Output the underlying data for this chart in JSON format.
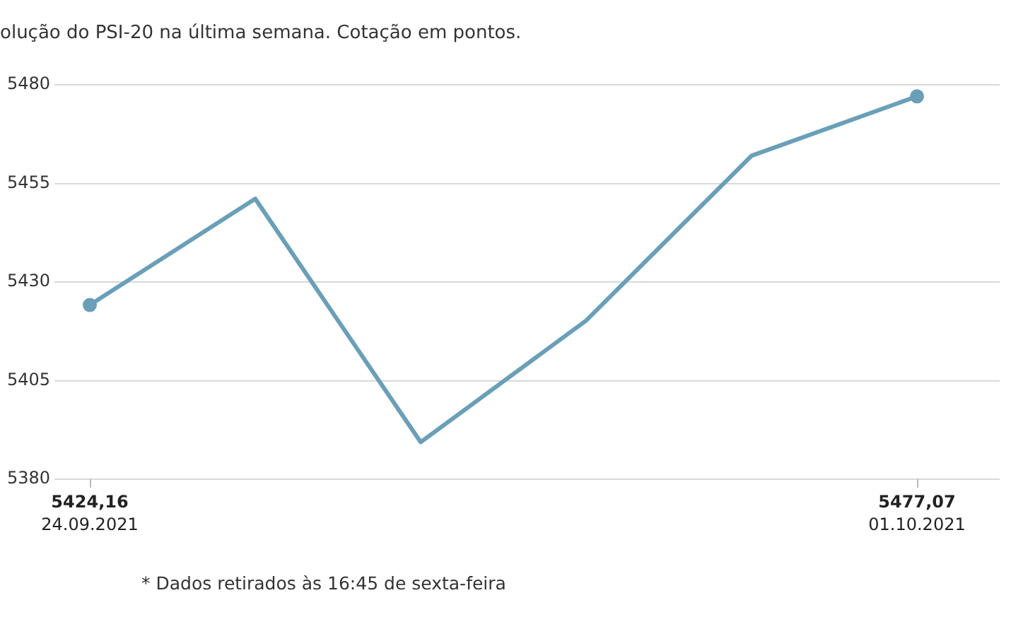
{
  "chart_data": {
    "type": "line",
    "title": "olução do PSI-20 na última semana. Cotação em pontos.",
    "categories": [
      "24.09.2021",
      null,
      null,
      null,
      null,
      "01.10.2021"
    ],
    "series": [
      {
        "color": "#6a9fb8",
        "values": [
          5424.16,
          5451.1,
          5389.4,
          5420.2,
          5462.0,
          5477.07
        ],
        "marker": "none"
      },
      {
        "type": "scatter",
        "color": "#6a9fb8",
        "values": [
          5424.16,
          null,
          null,
          null,
          null,
          5477.07
        ],
        "marker": "circle",
        "value_labels": [
          "5424,16",
          null,
          null,
          null,
          null,
          "5477,07"
        ]
      }
    ],
    "ylim": [
      5380,
      5480
    ],
    "yticks": [
      5380,
      5405,
      5430,
      5455,
      5480
    ],
    "grid": "y",
    "line_style": "solid",
    "annotations": [
      "* Dados retirados às 16:45 de sexta-feira"
    ]
  }
}
